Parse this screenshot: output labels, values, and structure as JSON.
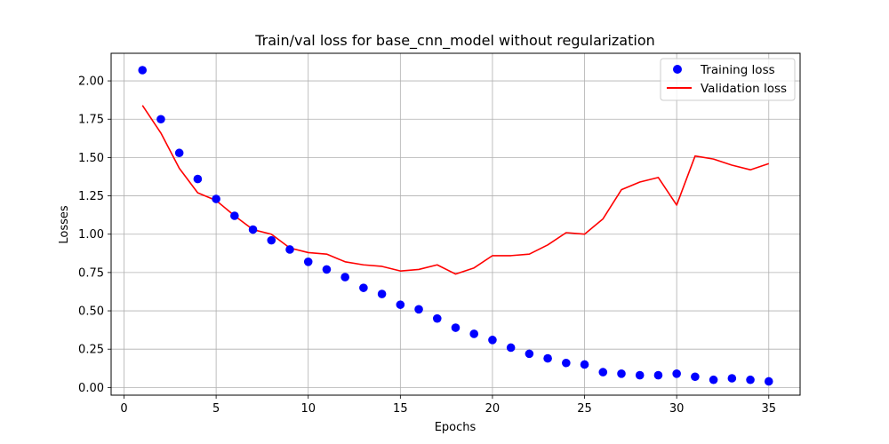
{
  "chart_data": {
    "type": "line",
    "title": "Train/val loss for base_cnn_model without regularization",
    "xlabel": "Epochs",
    "ylabel": "Losses",
    "xlim": [
      -0.7,
      36.7
    ],
    "ylim": [
      -0.05,
      2.18
    ],
    "xticks": [
      0,
      5,
      10,
      15,
      20,
      25,
      30,
      35
    ],
    "yticks": [
      0.0,
      0.25,
      0.5,
      0.75,
      1.0,
      1.25,
      1.5,
      1.75,
      2.0
    ],
    "xtick_labels": [
      "0",
      "5",
      "10",
      "15",
      "20",
      "25",
      "30",
      "35"
    ],
    "ytick_labels": [
      "0.00",
      "0.25",
      "0.50",
      "0.75",
      "1.00",
      "1.25",
      "1.50",
      "1.75",
      "2.00"
    ],
    "grid": true,
    "legend_position": "top-right",
    "x": [
      1,
      2,
      3,
      4,
      5,
      6,
      7,
      8,
      9,
      10,
      11,
      12,
      13,
      14,
      15,
      16,
      17,
      18,
      19,
      20,
      21,
      22,
      23,
      24,
      25,
      26,
      27,
      28,
      29,
      30,
      31,
      32,
      33,
      34,
      35
    ],
    "series": [
      {
        "name": "Training loss",
        "style": "scatter",
        "color": "#0000ff",
        "values": [
          2.07,
          1.75,
          1.53,
          1.36,
          1.23,
          1.12,
          1.03,
          0.96,
          0.9,
          0.82,
          0.77,
          0.72,
          0.65,
          0.61,
          0.54,
          0.51,
          0.45,
          0.39,
          0.35,
          0.31,
          0.26,
          0.22,
          0.19,
          0.16,
          0.15,
          0.1,
          0.09,
          0.08,
          0.08,
          0.09,
          0.07,
          0.05,
          0.06,
          0.05,
          0.04
        ]
      },
      {
        "name": "Validation loss",
        "style": "line",
        "color": "#ff0000",
        "values": [
          1.84,
          1.66,
          1.43,
          1.27,
          1.22,
          1.12,
          1.03,
          1.0,
          0.91,
          0.88,
          0.87,
          0.82,
          0.8,
          0.79,
          0.76,
          0.77,
          0.8,
          0.74,
          0.78,
          0.86,
          0.86,
          0.87,
          0.93,
          1.01,
          1.0,
          1.1,
          1.29,
          1.34,
          1.37,
          1.19,
          1.51,
          1.49,
          1.45,
          1.42,
          1.46
        ]
      }
    ]
  }
}
